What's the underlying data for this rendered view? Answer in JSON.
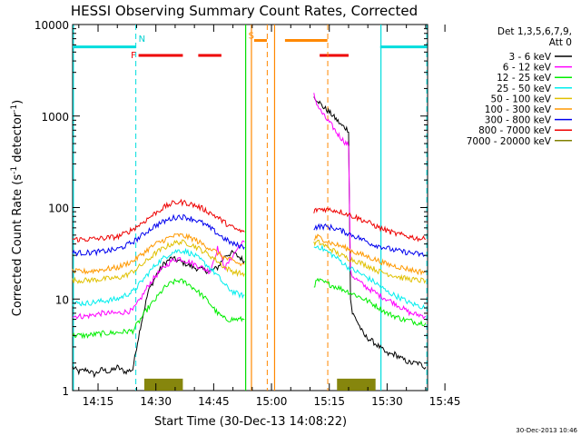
{
  "chart_data": {
    "type": "line",
    "title": "HESSI Observing Summary Count Rates, Corrected",
    "xlabel": "Start Time (30-Dec-13 14:08:22)",
    "ylabel": "Corrected Count Rate (s⁻¹ detector⁻¹)",
    "ylabel_main": "Corrected Count Rate (s",
    "ylabel_sup1": "-1",
    "ylabel_mid": " detector",
    "ylabel_sup2": "-1",
    "ylabel_end": ")",
    "y_scale": "log",
    "ylim": [
      1,
      10000
    ],
    "xlim_minutes": [
      8.4,
      100.5
    ],
    "x_ticks": [
      {
        "label": "14:15",
        "minutes": 15
      },
      {
        "label": "14:30",
        "minutes": 30
      },
      {
        "label": "14:45",
        "minutes": 45
      },
      {
        "label": "15:00",
        "minutes": 60
      },
      {
        "label": "15:15",
        "minutes": 75
      },
      {
        "label": "15:30",
        "minutes": 90
      },
      {
        "label": "15:45",
        "minutes": 105
      }
    ],
    "y_ticks": [
      {
        "label": "1",
        "value": 1
      },
      {
        "label": "10",
        "value": 10
      },
      {
        "label": "100",
        "value": 100
      },
      {
        "label": "1000",
        "value": 1000
      },
      {
        "label": "10000",
        "value": 10000
      }
    ],
    "legend": {
      "header1": "Det 1,3,5,6,7,9,",
      "header2": "Att 0",
      "position": "right"
    },
    "series": [
      {
        "name": "3 - 6 keV",
        "color": "#000000",
        "segments": [
          {
            "x": [
              8.4,
              10,
              12,
              14,
              16,
              18,
              20,
              22,
              24,
              25,
              26,
              28,
              30,
              32,
              34,
              36,
              38,
              40,
              42,
              44,
              46,
              48,
              50,
              52,
              53
            ],
            "y": [
              1.8,
              1.6,
              1.7,
              1.5,
              1.7,
              1.6,
              1.8,
              1.6,
              1.7,
              3,
              5,
              12,
              18,
              24,
              28,
              26,
              24,
              22,
              21,
              20,
              22,
              30,
              32,
              28,
              26
            ]
          },
          {
            "x": [
              71,
              72,
              73,
              74,
              75,
              76,
              77,
              78,
              79,
              80,
              80.5,
              81,
              82,
              84,
              86,
              88,
              90,
              92,
              94,
              96,
              98,
              100
            ],
            "y": [
              1600,
              1500,
              1300,
              1200,
              1100,
              1000,
              900,
              800,
              750,
              700,
              10,
              7,
              6,
              4,
              3.5,
              3,
              2.5,
              2.5,
              2.2,
              2,
              2,
              1.8
            ]
          }
        ]
      },
      {
        "name": "6 - 12 keV",
        "color": "#ff00ff",
        "segments": [
          {
            "x": [
              8.4,
              12,
              16,
              20,
              24,
              26,
              28,
              30,
              32,
              34,
              36,
              38,
              40,
              42,
              44,
              46,
              48,
              50,
              52,
              53
            ],
            "y": [
              6.5,
              6.5,
              7,
              7,
              7.5,
              10,
              14,
              18,
              22,
              26,
              28,
              26,
              24,
              22,
              20,
              36,
              22,
              30,
              40,
              42
            ]
          },
          {
            "x": [
              71,
              72,
              73,
              74,
              75,
              76,
              77,
              78,
              79,
              80,
              80.5,
              81,
              84,
              88,
              92,
              96,
              100
            ],
            "y": [
              1700,
              1300,
              1100,
              950,
              850,
              750,
              650,
              580,
              520,
              480,
              20,
              18,
              14,
              11,
              9,
              7,
              6.5
            ]
          }
        ]
      },
      {
        "name": "12 - 25 keV",
        "color": "#00ee00",
        "segments": [
          {
            "x": [
              8.4,
              12,
              16,
              20,
              24,
              26,
              28,
              30,
              32,
              34,
              36,
              38,
              40,
              42,
              44,
              46,
              48,
              50,
              52,
              53
            ],
            "y": [
              4,
              4,
              4.2,
              4.3,
              4.5,
              6,
              8,
              10,
              13,
              15,
              16,
              15,
              13,
              11,
              9,
              7,
              6,
              6,
              6,
              6
            ]
          },
          {
            "x": [
              71,
              72,
              74,
              76,
              78,
              80,
              82,
              84,
              86,
              88,
              90,
              92,
              94,
              96,
              98,
              100
            ],
            "y": [
              14,
              16,
              15,
              14,
              13,
              12,
              11,
              10,
              9,
              8,
              7,
              6.5,
              6,
              5.8,
              5.5,
              5.5
            ]
          }
        ]
      },
      {
        "name": "25 - 50 keV",
        "color": "#00eeee",
        "segments": [
          {
            "x": [
              8.4,
              12,
              16,
              20,
              22,
              24,
              26,
              28,
              30,
              32,
              34,
              36,
              38,
              40,
              42,
              44,
              46,
              48,
              50,
              52,
              53
            ],
            "y": [
              9,
              9,
              9.5,
              10,
              11,
              12,
              15,
              19,
              24,
              28,
              32,
              34,
              33,
              30,
              26,
              22,
              18,
              14,
              12,
              11,
              11
            ]
          },
          {
            "x": [
              71,
              72,
              74,
              76,
              78,
              80,
              82,
              84,
              86,
              88,
              90,
              92,
              94,
              96,
              98,
              100
            ],
            "y": [
              36,
              38,
              34,
              30,
              26,
              22,
              20,
              18,
              16,
              14,
              12,
              11,
              10,
              9,
              8.5,
              8
            ]
          }
        ]
      },
      {
        "name": "50 - 100 keV",
        "color": "#e0c000",
        "segments": [
          {
            "x": [
              8.4,
              12,
              16,
              20,
              22,
              24,
              26,
              28,
              30,
              32,
              34,
              36,
              38,
              40,
              42,
              44,
              46,
              48,
              50,
              52,
              53
            ],
            "y": [
              16,
              16,
              16.5,
              17,
              18,
              20,
              23,
              27,
              32,
              36,
              40,
              42,
              41,
              38,
              34,
              30,
              26,
              22,
              20,
              19,
              19
            ]
          },
          {
            "x": [
              71,
              72,
              74,
              76,
              78,
              80,
              82,
              84,
              86,
              88,
              90,
              92,
              94,
              96,
              98,
              100
            ],
            "y": [
              40,
              42,
              38,
              34,
              30,
              28,
              26,
              24,
              22,
              20,
              19,
              18,
              17,
              16.5,
              16,
              16
            ]
          }
        ]
      },
      {
        "name": "100 - 300 keV",
        "color": "#ff9900",
        "segments": [
          {
            "x": [
              8.4,
              12,
              16,
              20,
              22,
              24,
              26,
              28,
              30,
              32,
              34,
              36,
              38,
              40,
              42,
              44,
              46,
              48,
              50,
              52,
              53
            ],
            "y": [
              20,
              20,
              21,
              22,
              24,
              26,
              30,
              35,
              40,
              44,
              48,
              50,
              48,
              45,
              40,
              36,
              32,
              28,
              26,
              24,
              24
            ]
          },
          {
            "x": [
              71,
              72,
              74,
              76,
              78,
              80,
              82,
              84,
              86,
              88,
              90,
              92,
              94,
              96,
              98,
              100
            ],
            "y": [
              45,
              48,
              44,
              40,
              38,
              35,
              32,
              30,
              28,
              26,
              24,
              23,
              22,
              21,
              20,
              20
            ]
          }
        ]
      },
      {
        "name": "300 - 800 keV",
        "color": "#0000ee",
        "segments": [
          {
            "x": [
              8.4,
              12,
              16,
              20,
              22,
              24,
              26,
              28,
              30,
              32,
              34,
              36,
              38,
              40,
              42,
              44,
              46,
              48,
              50,
              52,
              53
            ],
            "y": [
              32,
              32,
              33,
              35,
              38,
              42,
              48,
              56,
              64,
              70,
              76,
              80,
              78,
              74,
              68,
              60,
              52,
              45,
              40,
              38,
              37
            ]
          },
          {
            "x": [
              71,
              72,
              74,
              76,
              78,
              80,
              82,
              84,
              86,
              88,
              90,
              92,
              94,
              96,
              98,
              100
            ],
            "y": [
              60,
              62,
              62,
              60,
              56,
              52,
              48,
              44,
              40,
              38,
              36,
              34,
              33,
              32,
              31,
              30
            ]
          }
        ]
      },
      {
        "name": "800 - 7000 keV",
        "color": "#ee0000",
        "segments": [
          {
            "x": [
              8.4,
              12,
              16,
              20,
              22,
              24,
              26,
              28,
              30,
              32,
              34,
              36,
              38,
              40,
              42,
              44,
              46,
              48,
              50,
              52,
              53
            ],
            "y": [
              45,
              45,
              46,
              48,
              52,
              58,
              66,
              76,
              88,
              100,
              110,
              115,
              112,
              106,
              98,
              88,
              78,
              68,
              60,
              55,
              54
            ]
          },
          {
            "x": [
              71,
              72,
              74,
              76,
              78,
              80,
              82,
              84,
              86,
              88,
              90,
              92,
              94,
              96,
              98,
              100
            ],
            "y": [
              90,
              96,
              96,
              94,
              90,
              84,
              78,
              72,
              66,
              60,
              56,
              52,
              50,
              48,
              46,
              45
            ]
          }
        ]
      },
      {
        "name": "7000 - 20000 keV",
        "color": "#808000",
        "segments": [
          {
            "x": [
              27,
              27,
              37,
              37
            ],
            "y": [
              1,
              1.35,
              1.35,
              1
            ]
          },
          {
            "x": [
              77,
              77,
              87,
              87
            ],
            "y": [
              1,
              1.35,
              1.35,
              1
            ]
          }
        ]
      }
    ],
    "annotations": {
      "labels": [
        {
          "text": "N",
          "color": "#00d0d0",
          "minutes": 25.5,
          "value": 6500
        },
        {
          "text": "F",
          "color": "#ee0000",
          "minutes": 23.5,
          "value": 4300
        },
        {
          "text": "S",
          "color": "#ff8800",
          "minutes": 54.0,
          "value": 7000
        }
      ],
      "night_intervals": [
        [
          8.4,
          24.8
        ],
        [
          88.2,
          100.3
        ]
      ],
      "flare_intervals": [
        [
          25.5,
          37
        ],
        [
          41,
          47
        ],
        [
          72.5,
          80
        ]
      ],
      "saa_intervals": [
        [
          55.5,
          58.8
        ],
        [
          63.5,
          74.5
        ]
      ],
      "solid_vlines": [
        {
          "minutes": 8.6,
          "color": "#00dddd"
        },
        {
          "minutes": 53.3,
          "color": "#00dd00"
        },
        {
          "minutes": 54.8,
          "color": "#ff8800"
        },
        {
          "minutes": 60.8,
          "color": "#ff8800"
        },
        {
          "minutes": 88.4,
          "color": "#00dddd"
        }
      ],
      "dashed_vlines": [
        {
          "minutes": 24.8,
          "color": "#00dddd"
        },
        {
          "minutes": 58.9,
          "color": "#ff8800"
        },
        {
          "minutes": 74.6,
          "color": "#ff8800"
        },
        {
          "minutes": 100.3,
          "color": "#00dddd"
        }
      ],
      "grid": false
    }
  },
  "footer": {
    "timestamp": "30-Dec-2013 10:46"
  }
}
